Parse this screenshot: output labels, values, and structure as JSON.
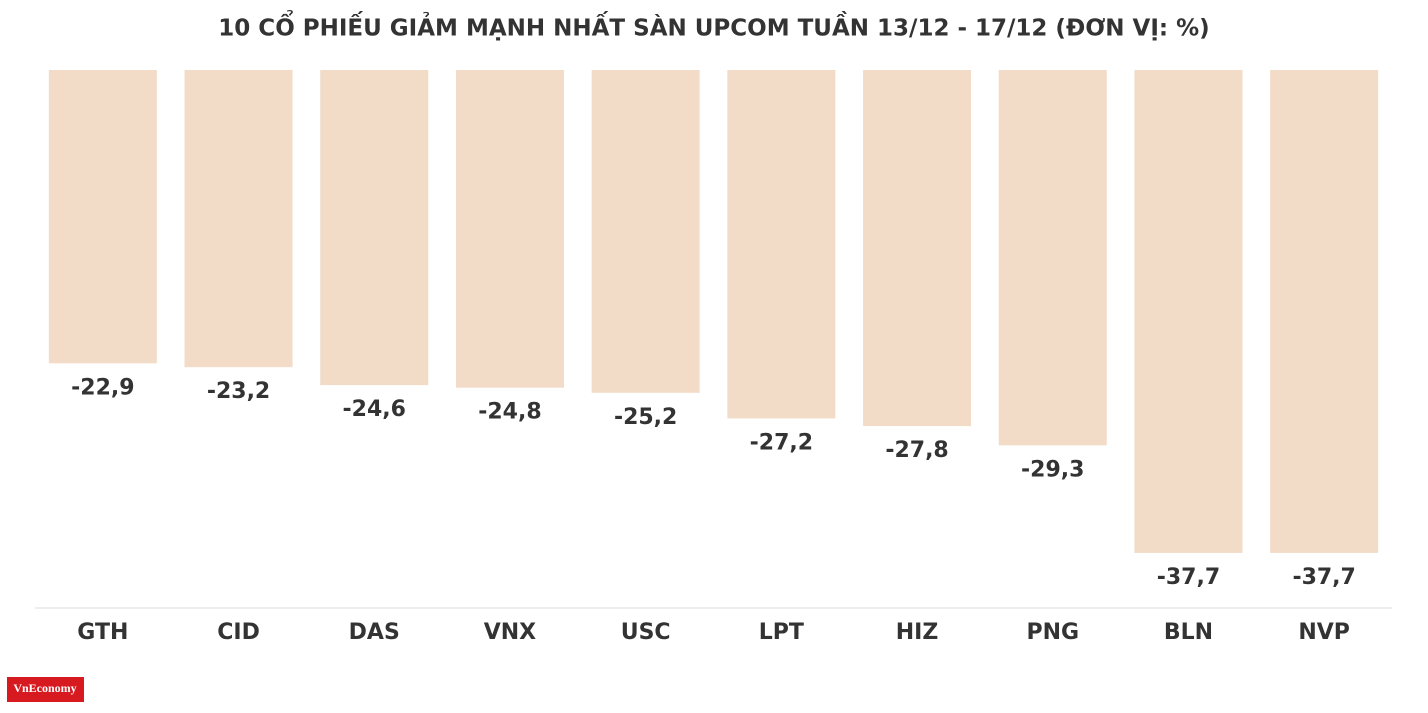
{
  "chart_data": {
    "type": "bar",
    "title": "10 CỔ PHIẾU GIẢM MẠNH NHẤT SÀN UPCOM TUẦN 13/12 - 17/12 (ĐƠN VỊ: %)",
    "categories": [
      "GTH",
      "CID",
      "DAS",
      "VNX",
      "USC",
      "LPT",
      "HIZ",
      "PNG",
      "BLN",
      "NVP"
    ],
    "values": [
      -22.9,
      -23.2,
      -24.6,
      -24.8,
      -25.2,
      -27.2,
      -27.8,
      -29.3,
      -37.7,
      -37.7
    ],
    "value_labels": [
      "-22,9",
      "-23,2",
      "-24,6",
      "-24,8",
      "-25,2",
      "-27,2",
      "-27,8",
      "-29,3",
      "-37,7",
      "-37,7"
    ],
    "color": "#f2dbc7",
    "ylim": [
      -42,
      0
    ]
  },
  "logo": "VnEconomy"
}
